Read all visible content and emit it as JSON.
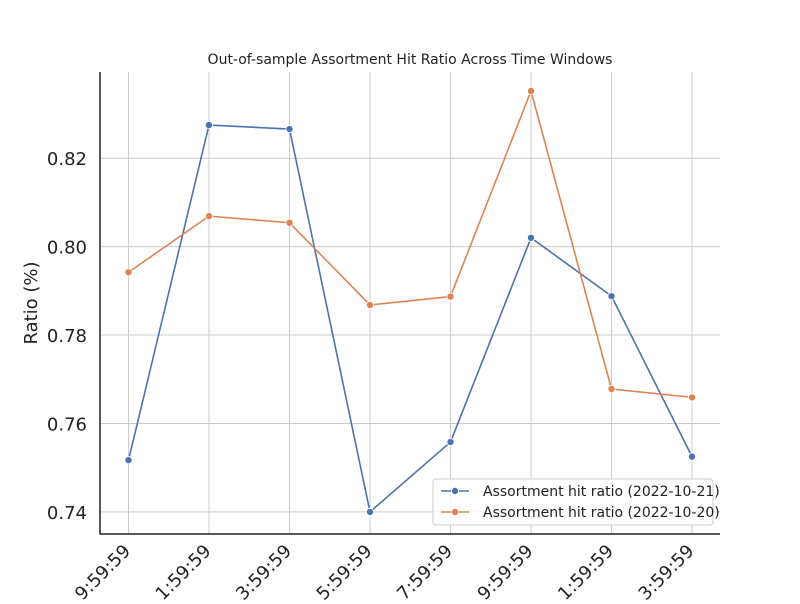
{
  "chart_data": {
    "type": "line",
    "title": "Out-of-sample Assortment Hit Ratio Across Time Windows",
    "xlabel": "",
    "ylabel": "Ratio (%)",
    "categories": [
      "9:59:59",
      "1:59:59",
      "3:59:59",
      "5:59:59",
      "7:59:59",
      "9:59:59",
      "1:59:59",
      "3:59:59"
    ],
    "ylim": [
      0.735,
      0.8395
    ],
    "yticks": [
      0.74,
      0.76,
      0.78,
      0.8,
      0.82
    ],
    "ytick_labels": [
      "0.74",
      "0.76",
      "0.78",
      "0.80",
      "0.82"
    ],
    "grid": true,
    "legend_position": "lower-right",
    "series": [
      {
        "name": "Assortment hit ratio (2022-10-21)",
        "color": "#4c72b0",
        "values": [
          0.7517,
          0.8275,
          0.8266,
          0.74,
          0.7558,
          0.802,
          0.7888,
          0.7525
        ]
      },
      {
        "name": "Assortment hit ratio (2022-10-20)",
        "color": "#dd8452",
        "values": [
          0.7942,
          0.8069,
          0.8054,
          0.7868,
          0.7887,
          0.8352,
          0.7678,
          0.7659
        ]
      }
    ]
  }
}
